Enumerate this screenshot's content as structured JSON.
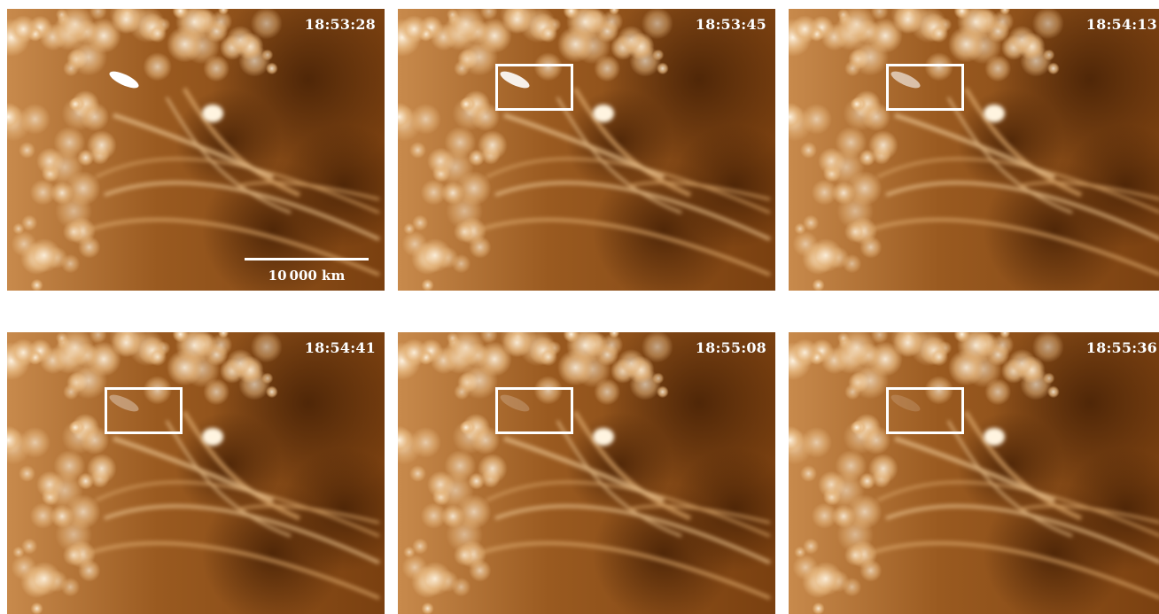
{
  "panels": [
    {
      "timestamp": "18:53:28",
      "roi_box": false,
      "scale_bar": true
    },
    {
      "timestamp": "18:53:45",
      "roi_box": true,
      "scale_bar": false
    },
    {
      "timestamp": "18:54:13",
      "roi_box": true,
      "scale_bar": false
    },
    {
      "timestamp": "18:54:41",
      "roi_box": true,
      "scale_bar": false
    },
    {
      "timestamp": "18:55:08",
      "roi_box": true,
      "scale_bar": false
    },
    {
      "timestamp": "18:55:36",
      "roi_box": true,
      "scale_bar": false
    }
  ],
  "scale_bar": {
    "label": "10 000 km"
  },
  "colors": {
    "dark": "#5a2e0a",
    "mid": "#9a5a20",
    "bright": "#f2d8b0",
    "white": "#ffffff"
  }
}
